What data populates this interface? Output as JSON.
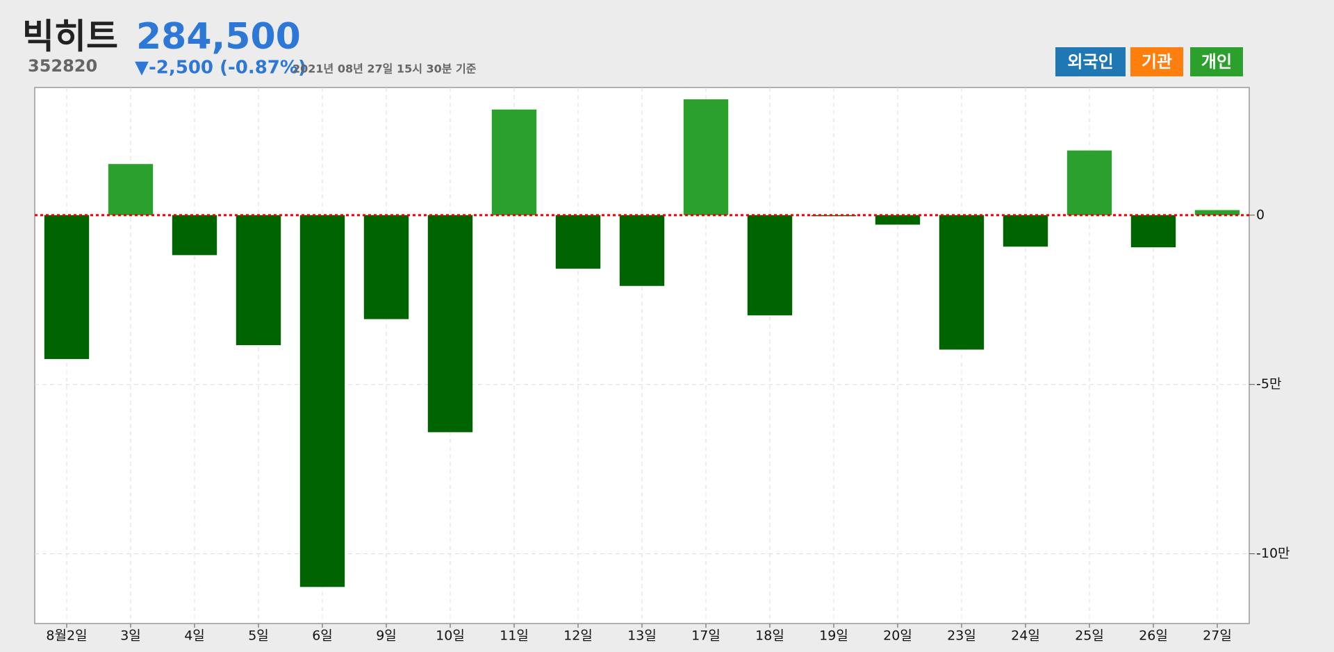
{
  "header": {
    "name": "빅히트",
    "price": "284,500",
    "code": "352820",
    "change": "▼-2,500 (-0.87%)",
    "timestamp": "2021년 08년 27일 15시 30분 기준"
  },
  "buttons": [
    {
      "label": "외국인",
      "color": "#1f77b4"
    },
    {
      "label": "기관",
      "color": "#ff7f0e"
    },
    {
      "label": "개인",
      "color": "#2ca02c"
    }
  ],
  "chart_data": {
    "type": "bar",
    "categories": [
      "8월2일",
      "3일",
      "4일",
      "5일",
      "6일",
      "9일",
      "10일",
      "11일",
      "12일",
      "13일",
      "17일",
      "18일",
      "19일",
      "20일",
      "23일",
      "24일",
      "25일",
      "26일",
      "27일"
    ],
    "values": [
      -42500,
      15100,
      -11800,
      -38400,
      -109800,
      -30700,
      -64100,
      31200,
      -15800,
      -20900,
      34200,
      -29600,
      -300,
      -2800,
      -39700,
      -9300,
      19100,
      -9500,
      1500
    ],
    "positive_color": "#2ca02c",
    "negative_color": "#006400",
    "ylim": [
      -120600,
      37700
    ],
    "yticks": [
      0,
      {
        "value": -50000,
        "label": "-5만"
      },
      {
        "value": -100000,
        "label": "-10만"
      }
    ],
    "grid": true
  }
}
